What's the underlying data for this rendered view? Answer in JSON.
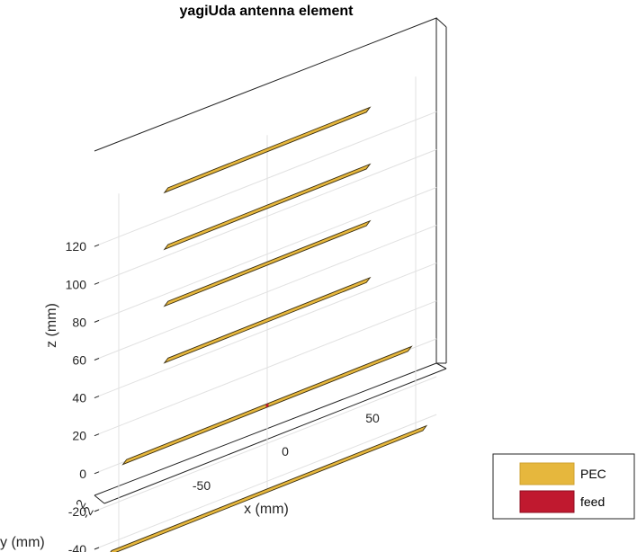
{
  "title": "yagiUda antenna element",
  "axes": {
    "xlabel": "x (mm)",
    "ylabel": "y (mm)",
    "zlabel": "z (mm)",
    "z_ticks": [
      "120",
      "100",
      "80",
      "60",
      "40",
      "20",
      "0",
      "-20",
      "-40"
    ],
    "x_ticks": [
      "-50",
      "0",
      "50"
    ],
    "y_ticks": [
      "2",
      "-2"
    ]
  },
  "legend": {
    "items": [
      {
        "label": "PEC",
        "color": "#e6b73d"
      },
      {
        "label": "feed",
        "color": "#c0192f"
      }
    ],
    "placement": "bottom-right"
  },
  "chart_data": {
    "type": "3d-structure",
    "title": "yagiUda antenna element",
    "xlabel": "x (mm)",
    "ylabel": "y (mm)",
    "zlabel": "z (mm)",
    "zlim": [
      -45,
      140
    ],
    "elements": [
      {
        "role": "reflector",
        "z": -45,
        "length": 106,
        "material": "PEC"
      },
      {
        "role": "driven",
        "z": 0,
        "length": 96,
        "material": "PEC",
        "feed": true
      },
      {
        "role": "director",
        "z": 45,
        "length": 68,
        "material": "PEC"
      },
      {
        "role": "director",
        "z": 75,
        "length": 68,
        "material": "PEC"
      },
      {
        "role": "director",
        "z": 105,
        "length": 68,
        "material": "PEC"
      },
      {
        "role": "director",
        "z": 135,
        "length": 68,
        "material": "PEC"
      }
    ]
  }
}
